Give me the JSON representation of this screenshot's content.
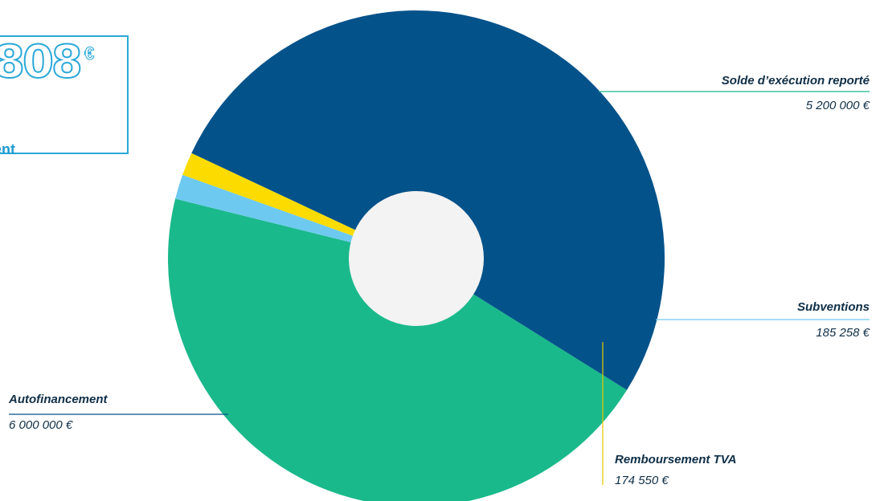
{
  "header": {
    "total_amount": "808",
    "total_currency": "€",
    "total_caption": "ent"
  },
  "chart_data": {
    "type": "pie",
    "title": "",
    "donut": true,
    "slices": [
      {
        "label": "Solde d’exécution reporté",
        "value": 5200000,
        "display": "5 200 000 €",
        "color": "#1ab98b"
      },
      {
        "label": "Subventions",
        "value": 185258,
        "display": "185 258 €",
        "color": "#6ec9f0"
      },
      {
        "label": "Remboursement TVA",
        "value": 174550,
        "display": "174 550 €",
        "color": "#fcdc00"
      },
      {
        "label": "Autofinancement",
        "value": 6000000,
        "display": "6 000 000 €",
        "color": "#04528a"
      }
    ],
    "hole_color": "#f3f3f3",
    "legend": "callout-labels"
  }
}
